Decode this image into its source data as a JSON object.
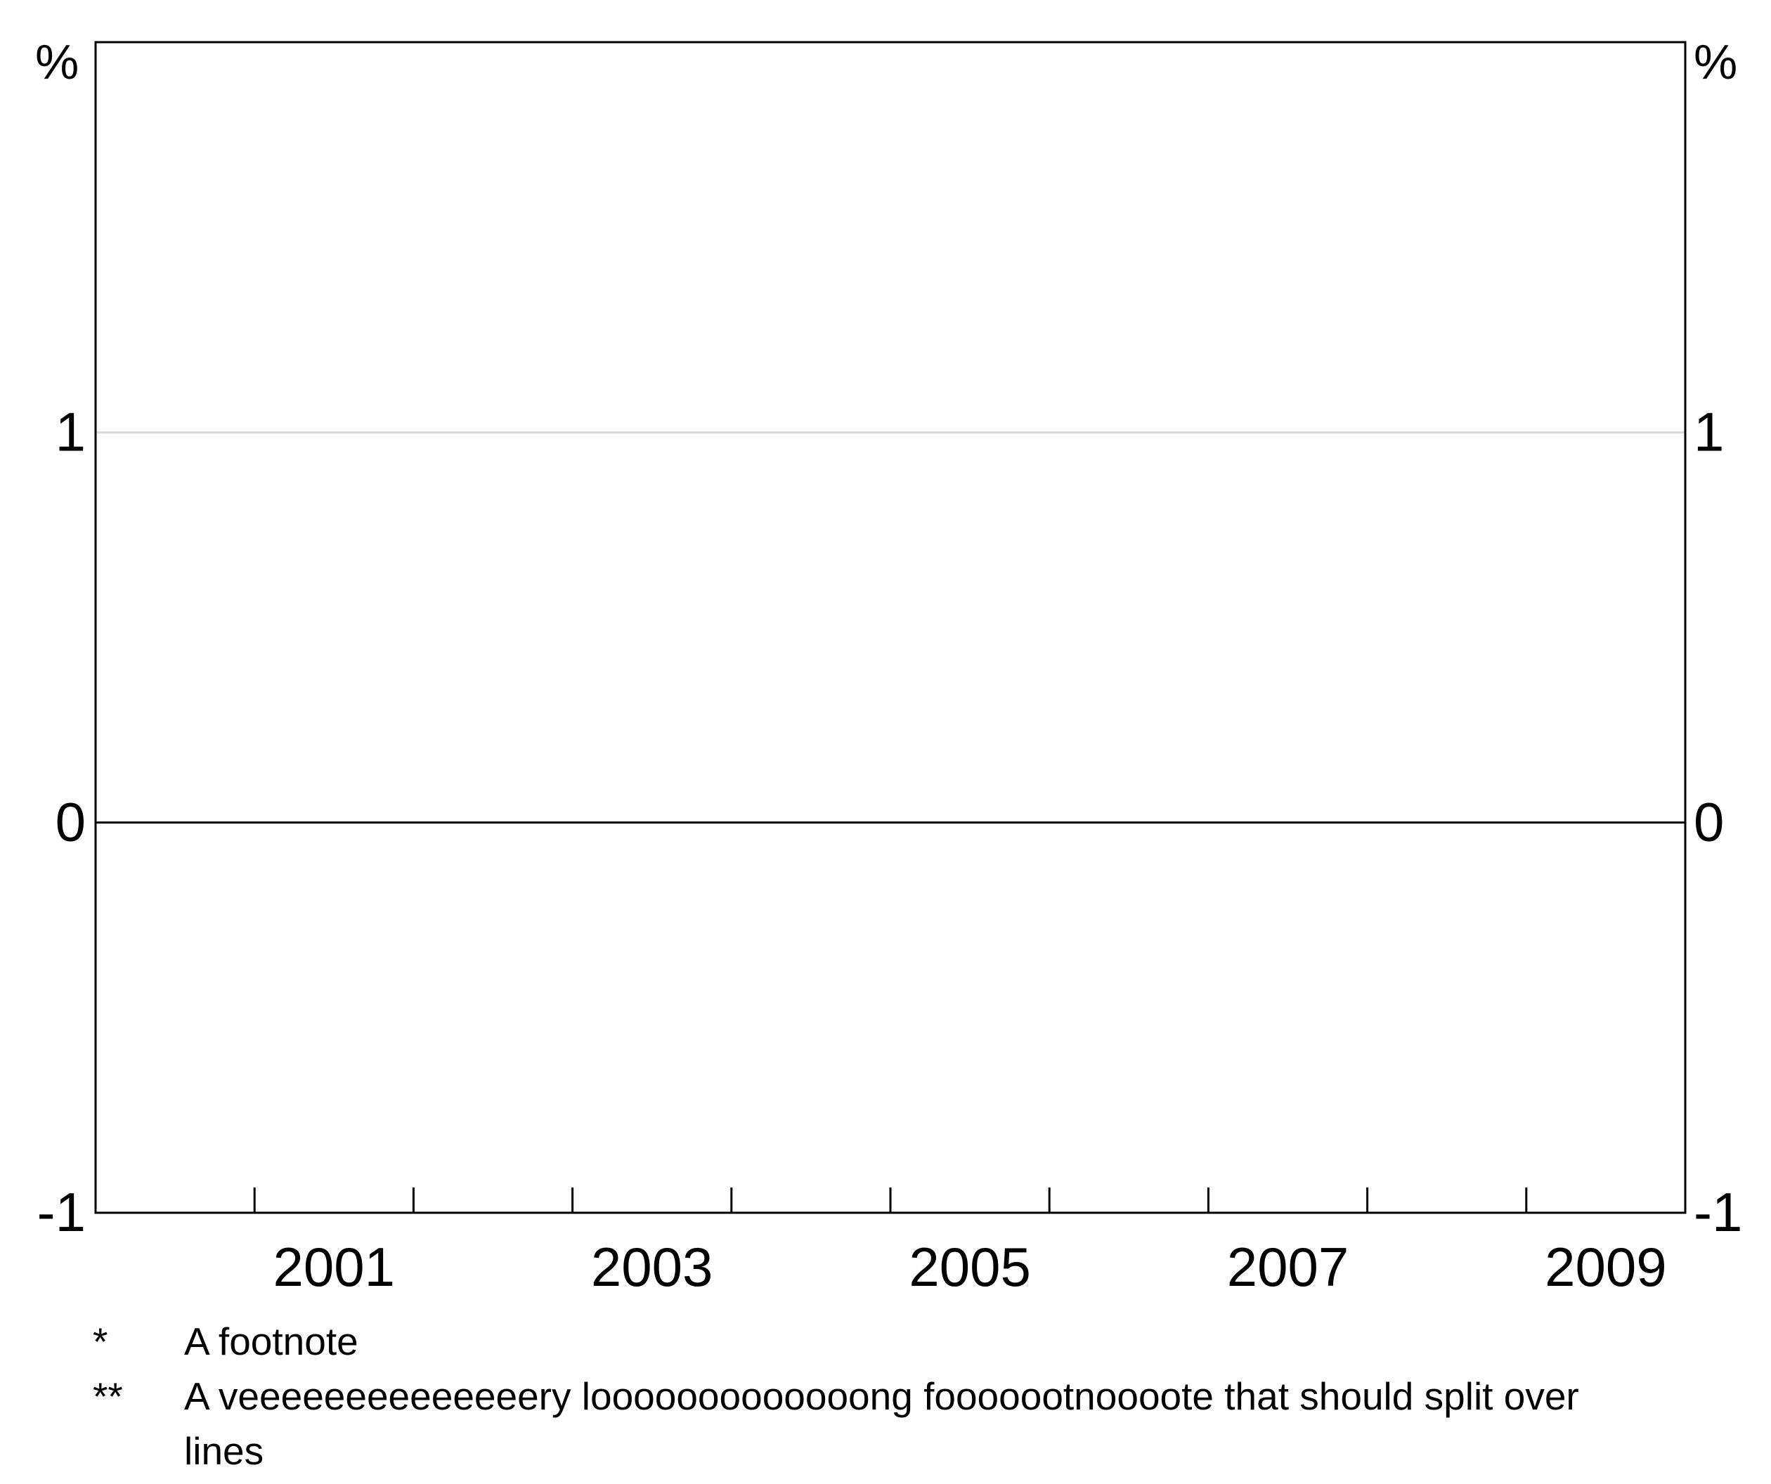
{
  "chart_data": {
    "type": "line",
    "x_range": [
      2000,
      2010
    ],
    "ylim": [
      -1,
      2
    ],
    "y_ticks": [
      -1,
      0,
      1
    ],
    "y_tick_labels": [
      "-1",
      "0",
      "1"
    ],
    "y_unit_left": "%",
    "y_unit_right": "%",
    "x_minor_ticks": [
      2001,
      2002,
      2003,
      2004,
      2005,
      2006,
      2007,
      2008,
      2009
    ],
    "x_tick_labels": [
      "2001",
      "2003",
      "2005",
      "2007",
      "2009"
    ],
    "x_label_positions": [
      2001,
      2003,
      2005,
      2007,
      2009
    ],
    "grid": true,
    "series": []
  },
  "footnotes": [
    {
      "marker": "*",
      "text": "A footnote"
    },
    {
      "marker": "**",
      "text": "A veeeeeeeeeeeeeery looooooooooooong fooooootnoooote that should split over lines"
    }
  ]
}
